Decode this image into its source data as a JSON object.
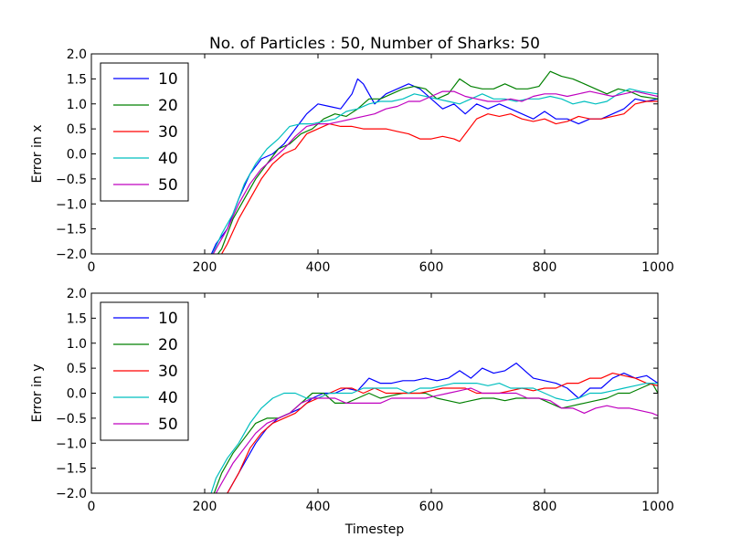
{
  "title": "No. of Particles : 50, Number of Sharks: 50",
  "xlabel": "Timestep",
  "colors": {
    "10": "#0000ff",
    "20": "#008000",
    "30": "#ff0000",
    "40": "#00bfbf",
    "50": "#bf00bf"
  },
  "chart_data": [
    {
      "type": "line",
      "title": "No. of Particles : 50, Number of Sharks: 50",
      "xlabel": "",
      "ylabel": "Error in x",
      "xlim": [
        0,
        1000
      ],
      "ylim": [
        -2.0,
        2.0
      ],
      "xticks": [
        "0",
        "200",
        "400",
        "600",
        "800",
        "1000"
      ],
      "yticks": [
        "2.0",
        "1.5",
        "1.0",
        "0.5",
        "0.0",
        "−0.5",
        "−1.0",
        "−1.5",
        "−2.0"
      ],
      "legend_position": "upper-left",
      "series": [
        {
          "name": "10",
          "color": "#0000ff",
          "x": [
            200,
            220,
            240,
            260,
            280,
            300,
            320,
            340,
            360,
            380,
            400,
            420,
            440,
            460,
            470,
            480,
            500,
            520,
            540,
            560,
            580,
            600,
            620,
            640,
            660,
            680,
            700,
            720,
            740,
            760,
            780,
            800,
            820,
            840,
            860,
            880,
            900,
            920,
            940,
            960,
            980,
            1000
          ],
          "y": [
            -2.3,
            -1.8,
            -1.5,
            -0.9,
            -0.4,
            -0.1,
            0.0,
            0.2,
            0.5,
            0.8,
            1.0,
            0.95,
            0.9,
            1.2,
            1.5,
            1.4,
            1.0,
            1.2,
            1.3,
            1.4,
            1.3,
            1.1,
            0.9,
            1.0,
            0.8,
            1.0,
            0.9,
            1.0,
            0.9,
            0.8,
            0.7,
            0.85,
            0.7,
            0.7,
            0.6,
            0.7,
            0.7,
            0.8,
            0.9,
            1.1,
            1.05,
            1.1
          ]
        },
        {
          "name": "20",
          "color": "#008000",
          "x": [
            210,
            230,
            250,
            270,
            290,
            310,
            330,
            350,
            370,
            390,
            410,
            430,
            450,
            470,
            490,
            510,
            530,
            550,
            570,
            590,
            610,
            630,
            650,
            670,
            690,
            710,
            730,
            750,
            770,
            790,
            810,
            830,
            850,
            870,
            890,
            910,
            930,
            950,
            970,
            1000
          ],
          "y": [
            -2.2,
            -1.9,
            -1.3,
            -0.9,
            -0.5,
            -0.2,
            0.1,
            0.2,
            0.4,
            0.5,
            0.7,
            0.8,
            0.75,
            0.9,
            1.1,
            1.1,
            1.2,
            1.3,
            1.35,
            1.3,
            1.1,
            1.2,
            1.5,
            1.35,
            1.3,
            1.3,
            1.4,
            1.3,
            1.3,
            1.35,
            1.65,
            1.55,
            1.5,
            1.4,
            1.3,
            1.2,
            1.3,
            1.25,
            1.15,
            1.1
          ]
        },
        {
          "name": "30",
          "color": "#ff0000",
          "x": [
            220,
            240,
            260,
            280,
            300,
            320,
            340,
            360,
            380,
            400,
            420,
            440,
            460,
            480,
            500,
            520,
            540,
            560,
            580,
            600,
            620,
            640,
            650,
            660,
            680,
            700,
            720,
            740,
            760,
            780,
            800,
            820,
            840,
            860,
            880,
            900,
            920,
            940,
            960,
            980,
            1000
          ],
          "y": [
            -2.2,
            -1.8,
            -1.3,
            -0.9,
            -0.5,
            -0.2,
            0.0,
            0.1,
            0.4,
            0.5,
            0.6,
            0.55,
            0.55,
            0.5,
            0.5,
            0.5,
            0.45,
            0.4,
            0.3,
            0.3,
            0.35,
            0.3,
            0.25,
            0.4,
            0.7,
            0.8,
            0.75,
            0.8,
            0.7,
            0.65,
            0.7,
            0.6,
            0.65,
            0.75,
            0.7,
            0.7,
            0.75,
            0.8,
            1.0,
            1.05,
            1.05
          ]
        },
        {
          "name": "40",
          "color": "#00bfbf",
          "x": [
            210,
            230,
            250,
            270,
            290,
            310,
            330,
            350,
            370,
            390,
            410,
            430,
            450,
            470,
            490,
            510,
            530,
            550,
            570,
            590,
            610,
            630,
            650,
            670,
            690,
            710,
            730,
            750,
            770,
            790,
            810,
            830,
            850,
            870,
            890,
            910,
            930,
            950,
            970,
            1000
          ],
          "y": [
            -2.1,
            -1.6,
            -1.2,
            -0.6,
            -0.2,
            0.1,
            0.3,
            0.55,
            0.6,
            0.6,
            0.65,
            0.7,
            0.85,
            0.9,
            1.0,
            1.05,
            1.05,
            1.1,
            1.2,
            1.15,
            1.1,
            1.05,
            1.0,
            1.1,
            1.2,
            1.1,
            1.1,
            1.05,
            1.1,
            1.1,
            1.15,
            1.1,
            1.0,
            1.05,
            1.0,
            1.05,
            1.2,
            1.3,
            1.25,
            1.2
          ]
        },
        {
          "name": "50",
          "color": "#bf00bf",
          "x": [
            200,
            220,
            240,
            260,
            280,
            300,
            320,
            340,
            360,
            380,
            400,
            420,
            440,
            460,
            480,
            500,
            520,
            540,
            560,
            580,
            600,
            620,
            640,
            660,
            680,
            700,
            720,
            740,
            760,
            780,
            800,
            820,
            840,
            860,
            880,
            900,
            920,
            940,
            960,
            980,
            1000
          ],
          "y": [
            -2.3,
            -1.9,
            -1.5,
            -1.0,
            -0.6,
            -0.3,
            -0.1,
            0.1,
            0.35,
            0.55,
            0.6,
            0.6,
            0.65,
            0.7,
            0.75,
            0.8,
            0.9,
            0.95,
            1.05,
            1.05,
            1.15,
            1.25,
            1.25,
            1.15,
            1.1,
            1.05,
            1.05,
            1.1,
            1.05,
            1.15,
            1.2,
            1.2,
            1.15,
            1.2,
            1.25,
            1.2,
            1.15,
            1.2,
            1.25,
            1.2,
            1.15
          ]
        }
      ]
    },
    {
      "type": "line",
      "title": "",
      "xlabel": "Timestep",
      "ylabel": "Error in y",
      "xlim": [
        0,
        1000
      ],
      "ylim": [
        -2.0,
        2.0
      ],
      "xticks": [
        "0",
        "200",
        "400",
        "600",
        "800",
        "1000"
      ],
      "yticks": [
        "2.0",
        "1.5",
        "1.0",
        "0.5",
        "0.0",
        "−0.5",
        "−1.0",
        "−1.5",
        "−2.0"
      ],
      "legend_position": "upper-left",
      "series": [
        {
          "name": "10",
          "color": "#0000ff",
          "x": [
            230,
            250,
            270,
            290,
            310,
            330,
            350,
            370,
            390,
            410,
            430,
            450,
            470,
            490,
            510,
            530,
            550,
            570,
            590,
            610,
            630,
            650,
            670,
            690,
            710,
            730,
            750,
            760,
            780,
            800,
            820,
            840,
            860,
            880,
            900,
            920,
            940,
            960,
            980,
            1000
          ],
          "y": [
            -2.2,
            -1.8,
            -1.4,
            -1.0,
            -0.7,
            -0.5,
            -0.4,
            -0.3,
            -0.1,
            0.0,
            0.0,
            0.1,
            0.05,
            0.3,
            0.2,
            0.2,
            0.25,
            0.25,
            0.3,
            0.25,
            0.3,
            0.45,
            0.3,
            0.5,
            0.4,
            0.45,
            0.6,
            0.5,
            0.3,
            0.25,
            0.2,
            0.1,
            -0.1,
            0.1,
            0.1,
            0.3,
            0.4,
            0.3,
            0.35,
            0.2
          ]
        },
        {
          "name": "20",
          "color": "#008000",
          "x": [
            210,
            230,
            250,
            270,
            290,
            310,
            330,
            350,
            370,
            390,
            410,
            430,
            450,
            470,
            490,
            510,
            530,
            550,
            570,
            590,
            610,
            630,
            650,
            670,
            690,
            710,
            730,
            750,
            770,
            790,
            810,
            830,
            850,
            870,
            890,
            910,
            930,
            950,
            970,
            990,
            1000
          ],
          "y": [
            -2.2,
            -1.6,
            -1.2,
            -0.9,
            -0.6,
            -0.5,
            -0.5,
            -0.4,
            -0.2,
            0.0,
            0.0,
            -0.2,
            -0.2,
            -0.1,
            0.0,
            -0.1,
            -0.05,
            0.0,
            0.0,
            0.0,
            -0.1,
            -0.15,
            -0.2,
            -0.15,
            -0.1,
            -0.1,
            -0.15,
            -0.1,
            -0.1,
            -0.1,
            -0.2,
            -0.3,
            -0.25,
            -0.2,
            -0.15,
            -0.1,
            0.0,
            0.0,
            0.1,
            0.2,
            0.0
          ]
        },
        {
          "name": "30",
          "color": "#ff0000",
          "x": [
            220,
            240,
            260,
            280,
            300,
            320,
            340,
            360,
            380,
            400,
            420,
            440,
            460,
            480,
            500,
            520,
            540,
            560,
            580,
            600,
            620,
            640,
            660,
            680,
            700,
            720,
            740,
            760,
            780,
            800,
            820,
            840,
            860,
            880,
            900,
            920,
            940,
            960,
            980,
            1000
          ],
          "y": [
            -2.2,
            -2.0,
            -1.6,
            -1.1,
            -0.8,
            -0.6,
            -0.5,
            -0.4,
            -0.2,
            -0.1,
            0.0,
            0.1,
            0.1,
            0.0,
            0.1,
            0.0,
            0.0,
            0.0,
            0.0,
            0.05,
            0.1,
            0.1,
            0.1,
            0.0,
            0.0,
            0.0,
            0.05,
            0.1,
            0.05,
            0.1,
            0.1,
            0.2,
            0.2,
            0.3,
            0.3,
            0.4,
            0.35,
            0.3,
            0.2,
            0.15
          ]
        },
        {
          "name": "40",
          "color": "#00bfbf",
          "x": [
            200,
            220,
            240,
            260,
            280,
            300,
            320,
            340,
            360,
            380,
            400,
            420,
            440,
            460,
            480,
            500,
            520,
            540,
            560,
            580,
            600,
            620,
            640,
            660,
            680,
            700,
            720,
            740,
            760,
            780,
            800,
            820,
            840,
            860,
            880,
            900,
            920,
            940,
            960,
            980,
            1000
          ],
          "y": [
            -2.4,
            -1.7,
            -1.3,
            -1.0,
            -0.6,
            -0.3,
            -0.1,
            0.0,
            0.0,
            -0.1,
            -0.1,
            0.0,
            0.0,
            0.0,
            0.1,
            0.1,
            0.1,
            0.1,
            0.0,
            0.1,
            0.1,
            0.15,
            0.2,
            0.2,
            0.2,
            0.15,
            0.2,
            0.1,
            0.1,
            0.1,
            0.0,
            -0.1,
            -0.15,
            -0.1,
            0.0,
            0.0,
            0.05,
            0.1,
            0.15,
            0.2,
            0.2
          ]
        },
        {
          "name": "50",
          "color": "#bf00bf",
          "x": [
            210,
            230,
            250,
            270,
            290,
            310,
            330,
            350,
            370,
            390,
            410,
            430,
            450,
            470,
            490,
            510,
            530,
            550,
            570,
            590,
            610,
            630,
            650,
            670,
            690,
            710,
            730,
            750,
            770,
            790,
            810,
            830,
            850,
            870,
            890,
            910,
            930,
            950,
            970,
            990,
            1000
          ],
          "y": [
            -2.2,
            -1.8,
            -1.4,
            -1.1,
            -0.8,
            -0.6,
            -0.5,
            -0.4,
            -0.2,
            -0.1,
            -0.1,
            -0.1,
            -0.2,
            -0.2,
            -0.2,
            -0.2,
            -0.1,
            -0.1,
            -0.1,
            -0.1,
            -0.05,
            0.0,
            0.05,
            0.1,
            0.0,
            0.0,
            0.0,
            0.0,
            -0.1,
            -0.1,
            -0.15,
            -0.3,
            -0.3,
            -0.4,
            -0.3,
            -0.25,
            -0.3,
            -0.3,
            -0.35,
            -0.4,
            -0.45
          ]
        }
      ]
    }
  ]
}
